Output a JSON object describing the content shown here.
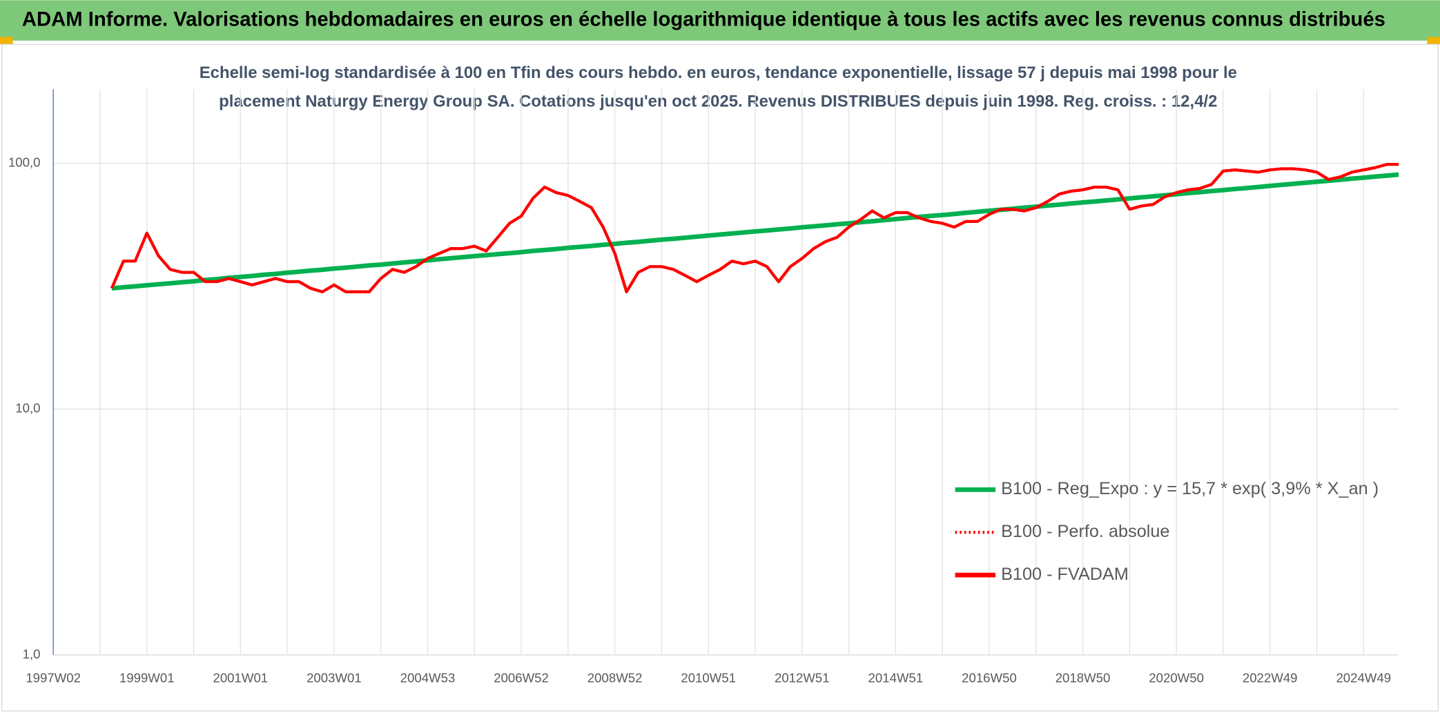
{
  "chart_data": {
    "type": "line",
    "title": "ADAM Informe. Valorisations hebdomadaires en euros en échelle logarithmique identique à tous les actifs avec les revenus connus distribués",
    "subtitle": [
      "Echelle semi-log standardisée à 100 en Tfin des cours hebdo. en euros, tendance exponentielle, lissage 57 j depuis mai 1998 pour le",
      "placement Naturgy Energy Group SA. Cotations jusqu'en oct 2025. Revenus DISTRIBUES depuis juin 1998. Reg. croiss. : 12,4/2"
    ],
    "categories": [
      "1997W02",
      null,
      null,
      null,
      null,
      null,
      null,
      null,
      "1999W01",
      null,
      null,
      null,
      null,
      null,
      null,
      null,
      "2001W01",
      null,
      null,
      null,
      null,
      null,
      null,
      null,
      "2003W01",
      null,
      null,
      null,
      null,
      null,
      null,
      null,
      "2004W53",
      null,
      null,
      null,
      null,
      null,
      null,
      null,
      "2006W52",
      null,
      null,
      null,
      null,
      null,
      null,
      null,
      "2008W52",
      null,
      null,
      null,
      null,
      null,
      null,
      null,
      "2010W51",
      null,
      null,
      null,
      null,
      null,
      null,
      null,
      "2012W51",
      null,
      null,
      null,
      null,
      null,
      null,
      null,
      "2014W51",
      null,
      null,
      null,
      null,
      null,
      null,
      null,
      "2016W50",
      null,
      null,
      null,
      null,
      null,
      null,
      null,
      "2018W50",
      null,
      null,
      null,
      null,
      null,
      null,
      null,
      "2020W50",
      null,
      null,
      null,
      null,
      null,
      null,
      null,
      "2022W49",
      null,
      null,
      null,
      null,
      null,
      null,
      null,
      "2024W49",
      null,
      null,
      null
    ],
    "log_scale": true,
    "ylim": [
      1,
      200
    ],
    "yticks": [
      {
        "value": 1,
        "label": "1,0"
      },
      {
        "value": 10,
        "label": "10,0"
      },
      {
        "value": 100,
        "label": "100,0"
      }
    ],
    "grid": true,
    "legend": "right",
    "series": [
      {
        "name": "B100 - Reg_Expo : y = 15,7 * exp( 3,9% *  X_an )",
        "color": "#00b050",
        "style": "solid",
        "values": [
          null,
          null,
          null,
          null,
          null,
          31.0,
          31.3,
          31.6,
          31.9,
          32.2,
          32.5,
          32.8,
          33.1,
          33.5,
          33.8,
          34.2,
          34.5,
          34.8,
          35.2,
          35.5,
          35.9,
          36.2,
          36.6,
          36.9,
          37.3,
          37.6,
          38.0,
          38.4,
          38.7,
          39.1,
          39.5,
          39.9,
          40.3,
          40.7,
          41.1,
          41.5,
          41.9,
          42.3,
          42.7,
          43.1,
          43.5,
          44.0,
          44.4,
          44.8,
          45.3,
          45.7,
          46.1,
          46.6,
          47.0,
          47.5,
          47.9,
          48.4,
          48.9,
          49.3,
          49.8,
          50.3,
          50.8,
          51.3,
          51.8,
          52.3,
          52.8,
          53.3,
          53.8,
          54.3,
          54.9,
          55.4,
          55.9,
          56.5,
          57.0,
          57.6,
          58.1,
          58.7,
          59.3,
          59.9,
          60.5,
          61.1,
          61.6,
          62.2,
          62.9,
          63.5,
          64.1,
          64.7,
          65.3,
          66.0,
          66.6,
          67.3,
          67.9,
          68.6,
          69.3,
          69.9,
          70.6,
          71.3,
          72.0,
          72.7,
          73.4,
          74.1,
          74.8,
          75.6,
          76.3,
          77.1,
          77.8,
          78.6,
          79.3,
          80.1,
          80.9,
          81.7,
          82.5,
          83.3,
          84.1,
          84.9,
          85.7,
          86.6,
          87.4,
          88.3,
          89.1,
          90.0
        ]
      },
      {
        "name": "B100 - Perfo. absolue",
        "color": "#ff0000",
        "style": "dotted",
        "values": [
          null,
          null,
          null,
          null,
          null,
          31,
          40,
          40,
          52,
          42,
          37,
          36,
          36,
          33,
          33,
          34,
          33,
          32,
          33,
          34,
          33,
          33,
          31,
          30,
          32,
          30,
          30,
          30,
          34,
          37,
          36,
          38,
          41,
          43,
          45,
          45,
          46,
          44,
          50,
          57,
          61,
          72,
          80,
          76,
          74,
          70,
          66,
          55,
          43,
          30,
          36,
          38,
          38,
          37,
          35,
          33,
          35,
          37,
          40,
          39,
          40,
          38,
          33,
          38,
          41,
          45,
          48,
          50,
          55,
          59,
          64,
          60,
          63,
          63,
          60,
          58,
          57,
          55,
          58,
          58,
          62,
          65,
          65,
          64,
          66,
          70,
          75,
          77,
          78,
          80,
          80,
          78,
          65,
          67,
          68,
          73,
          76,
          78,
          79,
          82,
          93,
          94,
          93,
          92,
          94,
          95,
          95,
          94,
          92,
          86,
          88,
          92,
          94,
          96,
          99,
          99
        ]
      },
      {
        "name": "B100 - FVADAM",
        "color": "#ff0000",
        "style": "solid",
        "values": [
          null,
          null,
          null,
          null,
          null,
          31,
          40,
          40,
          52,
          42,
          37,
          36,
          36,
          33,
          33,
          34,
          33,
          32,
          33,
          34,
          33,
          33,
          31,
          30,
          32,
          30,
          30,
          30,
          34,
          37,
          36,
          38,
          41,
          43,
          45,
          45,
          46,
          44,
          50,
          57,
          61,
          72,
          80,
          76,
          74,
          70,
          66,
          55,
          43,
          30,
          36,
          38,
          38,
          37,
          35,
          33,
          35,
          37,
          40,
          39,
          40,
          38,
          33,
          38,
          41,
          45,
          48,
          50,
          55,
          59,
          64,
          60,
          63,
          63,
          60,
          58,
          57,
          55,
          58,
          58,
          62,
          65,
          65,
          64,
          66,
          70,
          75,
          77,
          78,
          80,
          80,
          78,
          65,
          67,
          68,
          73,
          76,
          78,
          79,
          82,
          93,
          94,
          93,
          92,
          94,
          95,
          95,
          94,
          92,
          86,
          88,
          92,
          94,
          96,
          99,
          99
        ]
      }
    ]
  }
}
